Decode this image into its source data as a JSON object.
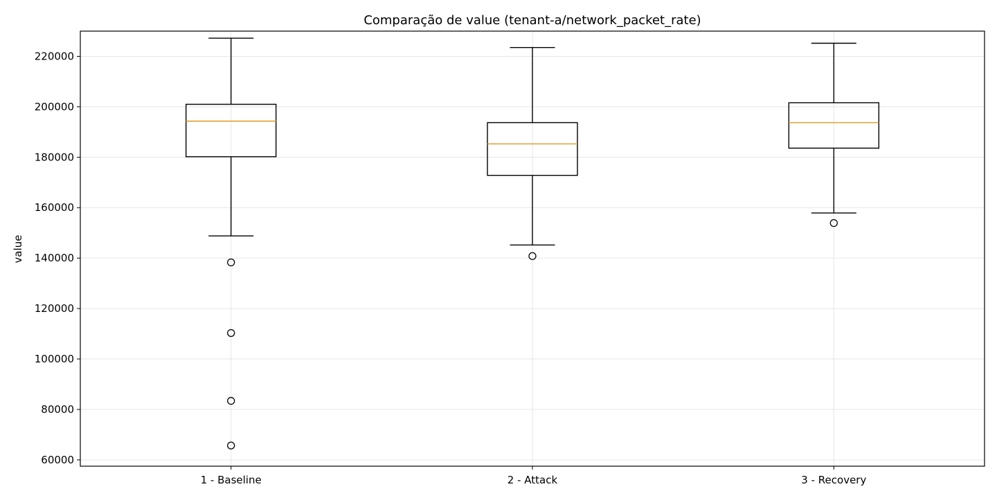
{
  "chart_data": {
    "type": "box",
    "title": "Comparação de value (tenant-a/network_packet_rate)",
    "xlabel": "",
    "ylabel": "value",
    "ylim": [
      57500,
      230000
    ],
    "yticks": [
      60000,
      80000,
      100000,
      120000,
      140000,
      160000,
      180000,
      200000,
      220000
    ],
    "ytick_labels": [
      "60000",
      "80000",
      "100000",
      "120000",
      "140000",
      "160000",
      "180000",
      "200000",
      "220000"
    ],
    "grid": true,
    "categories": [
      "1 - Baseline",
      "2 - Attack",
      "3 - Recovery"
    ],
    "boxes": [
      {
        "category": "1 - Baseline",
        "whisker_low": 148800,
        "q1": 180200,
        "median": 194300,
        "q3": 201000,
        "whisker_high": 227200,
        "outliers": [
          138300,
          110300,
          83400,
          65700
        ]
      },
      {
        "category": "2 - Attack",
        "whisker_low": 145200,
        "q1": 172800,
        "median": 185300,
        "q3": 193700,
        "whisker_high": 223500,
        "outliers": [
          140800
        ]
      },
      {
        "category": "3 - Recovery",
        "whisker_low": 157900,
        "q1": 183600,
        "median": 193700,
        "q3": 201600,
        "whisker_high": 225200,
        "outliers": [
          153900
        ]
      }
    ],
    "colors": {
      "box": "#000000",
      "median": "#e0a030",
      "grid": "#e6e6e6",
      "outlier_edge": "#000000"
    }
  }
}
